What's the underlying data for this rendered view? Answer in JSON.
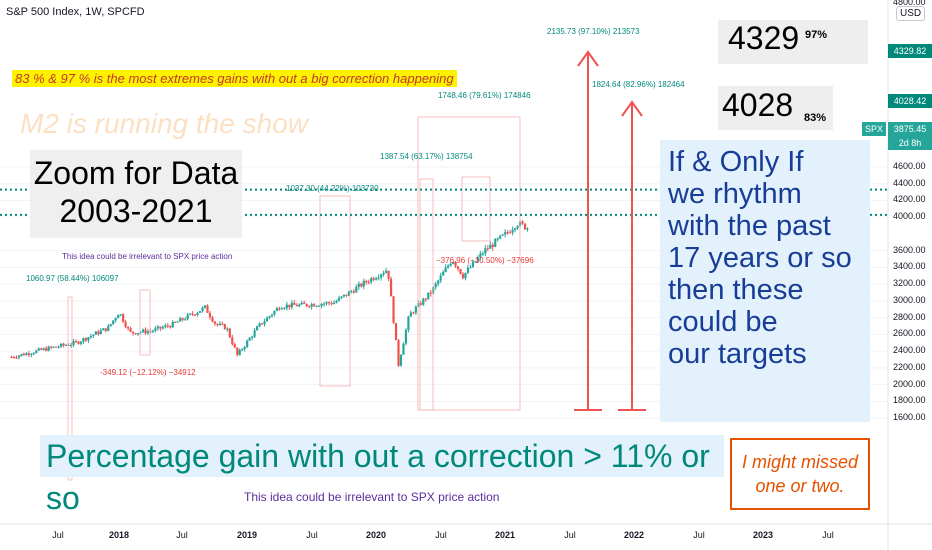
{
  "header": {
    "symbol": "S&P 500 Index, 1W, SPCFD",
    "currency": "USD"
  },
  "axis": {
    "y_ticks": [
      "4600.00",
      "4400.00",
      "4200.00",
      "4000.00",
      "3600.00",
      "3400.00",
      "3200.00",
      "3000.00",
      "2800.00",
      "2600.00",
      "2400.00",
      "2200.00",
      "2000.00",
      "1800.00",
      "1600.00"
    ],
    "y_top_label": "4800.00",
    "x_ticks": [
      "Jul",
      "2018",
      "Jul",
      "2019",
      "Jul",
      "2020",
      "Jul",
      "2021",
      "Jul",
      "2022",
      "Jul",
      "2023",
      "Jul"
    ]
  },
  "price_tags": {
    "t4329": "4329.82",
    "t4028": "4028.42",
    "spx_label": "SPX",
    "spx": "3875.45",
    "countdown": "2d 8h"
  },
  "annotations": {
    "banner": "83 % & 97 % is the most extremes gains with out a big correction happening",
    "m2": "M2 is running the show",
    "zoom": "Zoom for Data\n2003-2021",
    "big4329": "4329",
    "pct97": "97%",
    "big4028": "4028",
    "pct83": "83%",
    "targets": "If & Only If\nwe rhythm\nwith the past\n17 years or so\nthen these\ncould be\nour targets",
    "pct_gain": "Percentage gain with out a correction > 11% or so",
    "missed": "I might missed\none or two.",
    "irrelevant": "This idea could be irrelevant to SPX price action",
    "irrelevant_small": "This idea could be irrelevant to SPX price action"
  },
  "measures": [
    {
      "text": "1060.97 (58.44%) 106097",
      "color": "#00897b"
    },
    {
      "text": "-349.12 (−12.12%) −34912",
      "color": "#e53935"
    },
    {
      "text": "1037.30 (44.22%) 103730",
      "color": "#00897b"
    },
    {
      "text": "1387.54 (63.17%) 138754",
      "color": "#00897b"
    },
    {
      "text": "1748.46 (79.61%) 174846",
      "color": "#00897b"
    },
    {
      "text": "−376.96 (−10.50%) −37696",
      "color": "#e53935"
    },
    {
      "text": "2135.73 (97.10%) 213573",
      "color": "#00897b"
    },
    {
      "text": "1824.64 (82.96%) 182464",
      "color": "#00897b"
    }
  ],
  "colors": {
    "up": "#26a69a",
    "down": "#ef5350",
    "target_line": "#00897b",
    "arrow": "#ef5350"
  },
  "chart_data": {
    "type": "candlestick",
    "title": "S&P 500 Index, 1W, SPCFD",
    "ylim": [
      1500,
      4800
    ],
    "x_range": [
      "2017-05",
      "2023-09"
    ],
    "horizontal_levels": [
      4329.82,
      4028.42
    ],
    "last_price": 3875.45,
    "series": [
      {
        "date": "2017-03",
        "close": 2330
      },
      {
        "date": "2017-06",
        "close": 2420
      },
      {
        "date": "2017-09",
        "close": 2500
      },
      {
        "date": "2017-12",
        "close": 2680
      },
      {
        "date": "2018-01",
        "close": 2870
      },
      {
        "date": "2018-02",
        "close": 2620
      },
      {
        "date": "2018-04",
        "close": 2640
      },
      {
        "date": "2018-06",
        "close": 2720
      },
      {
        "date": "2018-09",
        "close": 2920
      },
      {
        "date": "2018-10",
        "close": 2720
      },
      {
        "date": "2018-11",
        "close": 2680
      },
      {
        "date": "2018-12",
        "close": 2350
      },
      {
        "date": "2019-02",
        "close": 2700
      },
      {
        "date": "2019-04",
        "close": 2940
      },
      {
        "date": "2019-06",
        "close": 2950
      },
      {
        "date": "2019-09",
        "close": 2980
      },
      {
        "date": "2019-12",
        "close": 3230
      },
      {
        "date": "2020-02",
        "close": 3380
      },
      {
        "date": "2020-03",
        "close": 2240
      },
      {
        "date": "2020-04",
        "close": 2830
      },
      {
        "date": "2020-06",
        "close": 3100
      },
      {
        "date": "2020-08",
        "close": 3500
      },
      {
        "date": "2020-09",
        "close": 3300
      },
      {
        "date": "2020-11",
        "close": 3600
      },
      {
        "date": "2021-01",
        "close": 3800
      },
      {
        "date": "2021-02",
        "close": 3930
      },
      {
        "date": "2021-03",
        "close": 3875
      }
    ]
  }
}
